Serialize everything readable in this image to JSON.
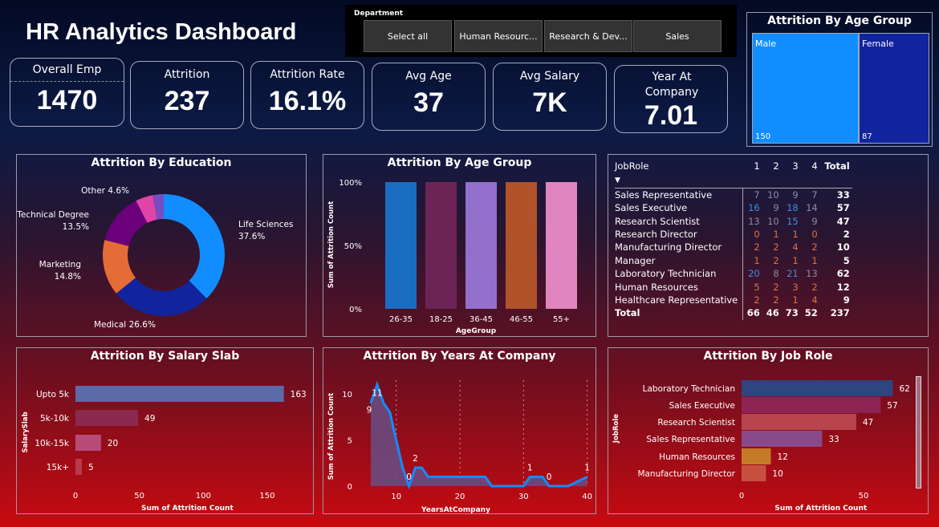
{
  "header": {
    "title": "HR Analytics Dashboard"
  },
  "slicer": {
    "label": "Department",
    "options": [
      "Select all",
      "Human Resourc...",
      "Research & Dev...",
      "Sales"
    ]
  },
  "kpis": [
    {
      "label": "Overall Emp",
      "value": "1470"
    },
    {
      "label": "Attrition",
      "value": "237"
    },
    {
      "label": "Attrition Rate",
      "value": "16.1%"
    },
    {
      "label": "Avg Age",
      "value": "37"
    },
    {
      "label": "Avg Salary",
      "value": "7K"
    },
    {
      "label": "Year At Company",
      "value": "7.01"
    }
  ],
  "colors": {
    "blue": "#118dff",
    "navy": "#12239e",
    "orange": "#e66c37",
    "purple": "#6b007b",
    "pink": "#e044a7",
    "violet": "#744ec2"
  },
  "treemap": {
    "title": "Attrition By Age Group",
    "items": [
      {
        "label": "Male",
        "value": "150",
        "color": "#118dff"
      },
      {
        "label": "Female",
        "value": "87",
        "color": "#12239e"
      }
    ]
  },
  "chart_data": [
    {
      "type": "pie",
      "title": "Attrition By Education",
      "donut": true,
      "slices": [
        {
          "label": "Life Sciences",
          "value": 37.6,
          "text": "37.6%",
          "color": "#118dff"
        },
        {
          "label": "Medical",
          "value": 26.6,
          "text": "26.6%",
          "color": "#12239e"
        },
        {
          "label": "Marketing",
          "value": 14.8,
          "text": "14.8%",
          "color": "#e66c37"
        },
        {
          "label": "Technical Degree",
          "value": 13.5,
          "text": "13.5%",
          "color": "#6b007b"
        },
        {
          "label": "Other",
          "value": 4.6,
          "text": "4.6%",
          "color": "#e044a7"
        },
        {
          "label": "",
          "value": 2.9,
          "color": "#744ec2"
        }
      ]
    },
    {
      "type": "bar",
      "title": "Attrition By Age Group",
      "xlabel": "AgeGroup",
      "ylabel": "Sum of Attrition Count",
      "categories": [
        "26-35",
        "18-25",
        "36-45",
        "46-55",
        "55+"
      ],
      "values": [
        100,
        100,
        100,
        100,
        100
      ],
      "colors": [
        "#1a6dc0",
        "#6c2456",
        "#9370cc",
        "#b0522a",
        "#e085c0"
      ],
      "yticks": [
        "0%",
        "50%",
        "100%"
      ],
      "ylim": [
        0,
        100
      ]
    },
    {
      "type": "bar",
      "orientation": "horizontal",
      "title": "Attrition By Salary Slab",
      "xlabel": "Sum of Attrition Count",
      "ylabel": "SalarySlab",
      "categories": [
        "Upto 5k",
        "5k-10k",
        "10k-15k",
        "15k+"
      ],
      "values": [
        163,
        49,
        20,
        5
      ],
      "colors": [
        "#5b6aa8",
        "#8b2a4e",
        "#b84a78",
        "#b83a4a"
      ],
      "xticks": [
        0,
        50,
        100,
        150
      ],
      "xlim": [
        0,
        175
      ]
    },
    {
      "type": "area",
      "title": "Attrition By Years At Company",
      "xlabel": "YearsAtCompany",
      "ylabel": "Sum of Attrition Count",
      "x": [
        6,
        7,
        8,
        9,
        10,
        11,
        12,
        13,
        14,
        15,
        16,
        17,
        18,
        19,
        20,
        21,
        22,
        23,
        24,
        25,
        26,
        27,
        28,
        29,
        30,
        31,
        32,
        33,
        34,
        35,
        36,
        37,
        38,
        39,
        40
      ],
      "y": [
        9,
        11,
        9,
        8,
        5,
        2,
        0,
        2,
        2,
        1,
        1,
        1,
        1,
        1,
        1,
        1,
        1,
        1,
        1,
        0,
        0,
        0,
        0,
        0,
        0,
        1,
        1,
        1,
        0,
        0,
        0,
        0,
        0.33,
        0.67,
        1
      ],
      "labels": [
        {
          "x": 6,
          "y": 9,
          "text": "9"
        },
        {
          "x": 7,
          "y": 11,
          "text": "11"
        },
        {
          "x": 12,
          "y": 0,
          "text": "0"
        },
        {
          "x": 13,
          "y": 2,
          "text": "2"
        },
        {
          "x": 31,
          "y": 1,
          "text": "1"
        },
        {
          "x": 34,
          "y": 0,
          "text": "0"
        },
        {
          "x": 40,
          "y": 1,
          "text": "1"
        }
      ],
      "xticks": [
        10,
        20,
        30,
        40
      ],
      "yticks": [
        0,
        5,
        10
      ],
      "xlim": [
        6,
        40
      ],
      "ylim": [
        0,
        12
      ]
    },
    {
      "type": "bar",
      "orientation": "horizontal",
      "title": "Attrition By Job Role",
      "xlabel": "Sum of Attrition Count",
      "ylabel": "JobRole",
      "categories": [
        "Laboratory Technician",
        "Sales Executive",
        "Research Scientist",
        "Sales Representative",
        "Human Resources",
        "Manufacturing Director"
      ],
      "values": [
        62,
        57,
        47,
        33,
        12,
        10
      ],
      "colors": [
        "#2e4580",
        "#8e2454",
        "#b8444e",
        "#8a4a8a",
        "#c47a28",
        "#c85040"
      ],
      "xticks": [
        0,
        50
      ],
      "xlim": [
        0,
        65
      ]
    }
  ],
  "matrix": {
    "row_header": "JobRole",
    "columns": [
      "1",
      "2",
      "3",
      "4",
      "Total"
    ],
    "rows": [
      {
        "label": "Sales Representative",
        "values": [
          7,
          10,
          9,
          7
        ],
        "total": 33
      },
      {
        "label": "Sales Executive",
        "values": [
          16,
          9,
          18,
          14
        ],
        "total": 57
      },
      {
        "label": "Research Scientist",
        "values": [
          13,
          10,
          15,
          9
        ],
        "total": 47
      },
      {
        "label": "Research Director",
        "values": [
          0,
          1,
          1,
          0
        ],
        "total": 2
      },
      {
        "label": "Manufacturing Director",
        "values": [
          2,
          2,
          4,
          2
        ],
        "total": 10
      },
      {
        "label": "Manager",
        "values": [
          1,
          2,
          1,
          1
        ],
        "total": 5
      },
      {
        "label": "Laboratory Technician",
        "values": [
          20,
          8,
          21,
          13
        ],
        "total": 62
      },
      {
        "label": "Human Resources",
        "values": [
          5,
          2,
          3,
          2
        ],
        "total": 12
      },
      {
        "label": "Healthcare Representative",
        "values": [
          2,
          2,
          1,
          4
        ],
        "total": 9
      }
    ],
    "total_label": "Total",
    "totals": [
      66,
      46,
      73,
      52
    ],
    "grand_total": 237
  }
}
